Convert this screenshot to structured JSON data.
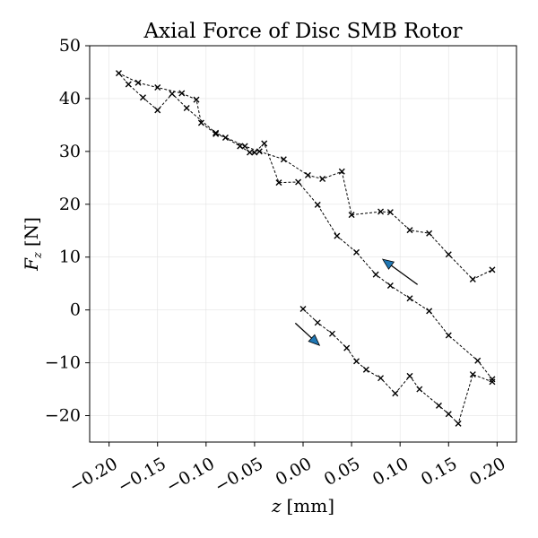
{
  "chart_data": {
    "type": "line",
    "title": "Axial Force of Disc SMB Rotor",
    "xlabel_var": "z",
    "xlabel_unit": "[mm]",
    "ylabel_var": "F",
    "ylabel_sub": "z",
    "ylabel_unit": "[N]",
    "xlim": [
      -0.22,
      0.22
    ],
    "ylim": [
      -25,
      50
    ],
    "xticks": [
      -0.2,
      -0.15,
      -0.1,
      -0.05,
      0.0,
      0.05,
      0.1,
      0.15,
      0.2
    ],
    "xtick_labels": [
      "−0.20",
      "−0.15",
      "−0.10",
      "−0.05",
      "0.00",
      "0.05",
      "0.10",
      "0.15",
      "0.20"
    ],
    "yticks": [
      -20,
      -10,
      0,
      10,
      20,
      30,
      40,
      50
    ],
    "ytick_labels": [
      "−20",
      "−10",
      "0",
      "10",
      "20",
      "30",
      "40",
      "50"
    ],
    "grid": true,
    "legend": "none",
    "line_style": "dashed",
    "marker": "x",
    "line_color": "#000000",
    "arrow_color": "#1f77b4",
    "series": [
      {
        "points": [
          [
            0.0,
            0.2
          ],
          [
            0.015,
            -2.4
          ],
          [
            0.03,
            -4.5
          ],
          [
            0.045,
            -7.2
          ],
          [
            0.055,
            -9.7
          ],
          [
            0.065,
            -11.3
          ],
          [
            0.08,
            -12.9
          ],
          [
            0.095,
            -15.8
          ],
          [
            0.11,
            -12.5
          ],
          [
            0.12,
            -15.0
          ],
          [
            0.14,
            -18.1
          ],
          [
            0.15,
            -19.7
          ],
          [
            0.16,
            -21.5
          ],
          [
            0.175,
            -12.2
          ],
          [
            0.195,
            -13.6
          ],
          [
            0.195,
            -13.1
          ],
          [
            0.18,
            -9.6
          ],
          [
            0.15,
            -4.8
          ],
          [
            0.13,
            -0.2
          ],
          [
            0.11,
            2.2
          ],
          [
            0.09,
            4.6
          ],
          [
            0.075,
            6.7
          ],
          [
            0.055,
            10.9
          ],
          [
            0.035,
            14.0
          ],
          [
            0.015,
            19.9
          ],
          [
            -0.005,
            24.2
          ],
          [
            -0.025,
            24.1
          ],
          [
            -0.04,
            31.5
          ],
          [
            -0.05,
            29.8
          ],
          [
            -0.055,
            29.8
          ],
          [
            -0.065,
            31.0
          ],
          [
            -0.08,
            32.6
          ],
          [
            -0.09,
            33.3
          ],
          [
            -0.105,
            35.4
          ],
          [
            -0.11,
            39.8
          ],
          [
            -0.125,
            41.0
          ],
          [
            -0.15,
            42.1
          ],
          [
            -0.17,
            43.0
          ],
          [
            -0.19,
            44.8
          ],
          [
            -0.18,
            42.7
          ],
          [
            -0.165,
            40.2
          ],
          [
            -0.15,
            37.8
          ],
          [
            -0.135,
            40.9
          ],
          [
            -0.12,
            38.2
          ],
          [
            -0.09,
            33.5
          ],
          [
            -0.06,
            31.0
          ],
          [
            -0.045,
            30.0
          ],
          [
            -0.02,
            28.5
          ],
          [
            0.005,
            25.5
          ],
          [
            0.02,
            24.8
          ],
          [
            0.04,
            26.2
          ],
          [
            0.05,
            18.0
          ],
          [
            0.08,
            18.6
          ],
          [
            0.09,
            18.5
          ],
          [
            0.11,
            15.1
          ],
          [
            0.13,
            14.5
          ],
          [
            0.15,
            10.5
          ],
          [
            0.175,
            5.8
          ],
          [
            0.195,
            7.6
          ]
        ]
      }
    ],
    "annotations": [
      {
        "type": "arrow",
        "from": [
          -0.008,
          -2.5
        ],
        "to": [
          0.017,
          -6.7
        ]
      },
      {
        "type": "arrow",
        "from": [
          0.118,
          4.8
        ],
        "to": [
          0.082,
          9.6
        ]
      }
    ]
  }
}
